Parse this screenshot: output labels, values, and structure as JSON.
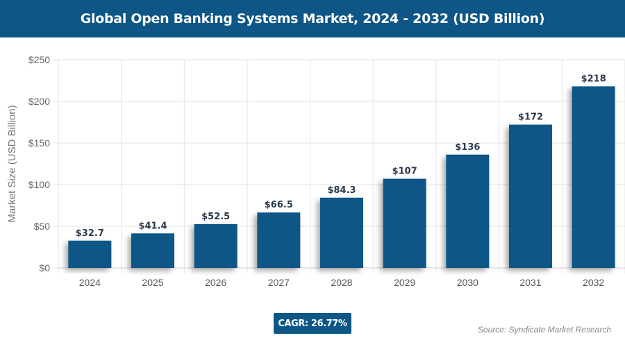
{
  "chart_data": {
    "type": "bar",
    "title": "Global Open Banking Systems Market, 2024 - 2032 (USD Billion)",
    "xlabel": "",
    "ylabel": "Market Size (USD Billion)",
    "categories": [
      "2024",
      "2025",
      "2026",
      "2027",
      "2028",
      "2029",
      "2030",
      "2031",
      "2032"
    ],
    "values": [
      32.7,
      41.4,
      52.5,
      66.5,
      84.3,
      107,
      136,
      172,
      218
    ],
    "data_labels": [
      "$32.7",
      "$41.4",
      "$52.5",
      "$66.5",
      "$84.3",
      "$107",
      "$136",
      "$172",
      "$218"
    ],
    "ylim": [
      0,
      250
    ],
    "yticks": [
      0,
      50,
      100,
      150,
      200,
      250
    ],
    "ytick_labels": [
      "$0",
      "$50",
      "$100",
      "$150",
      "$200",
      "$250"
    ],
    "grid": true,
    "bar_color": "#0d5686"
  },
  "footer": {
    "cagr": "CAGR: 26.77%",
    "source": "Source: Syndicate Market Research"
  }
}
